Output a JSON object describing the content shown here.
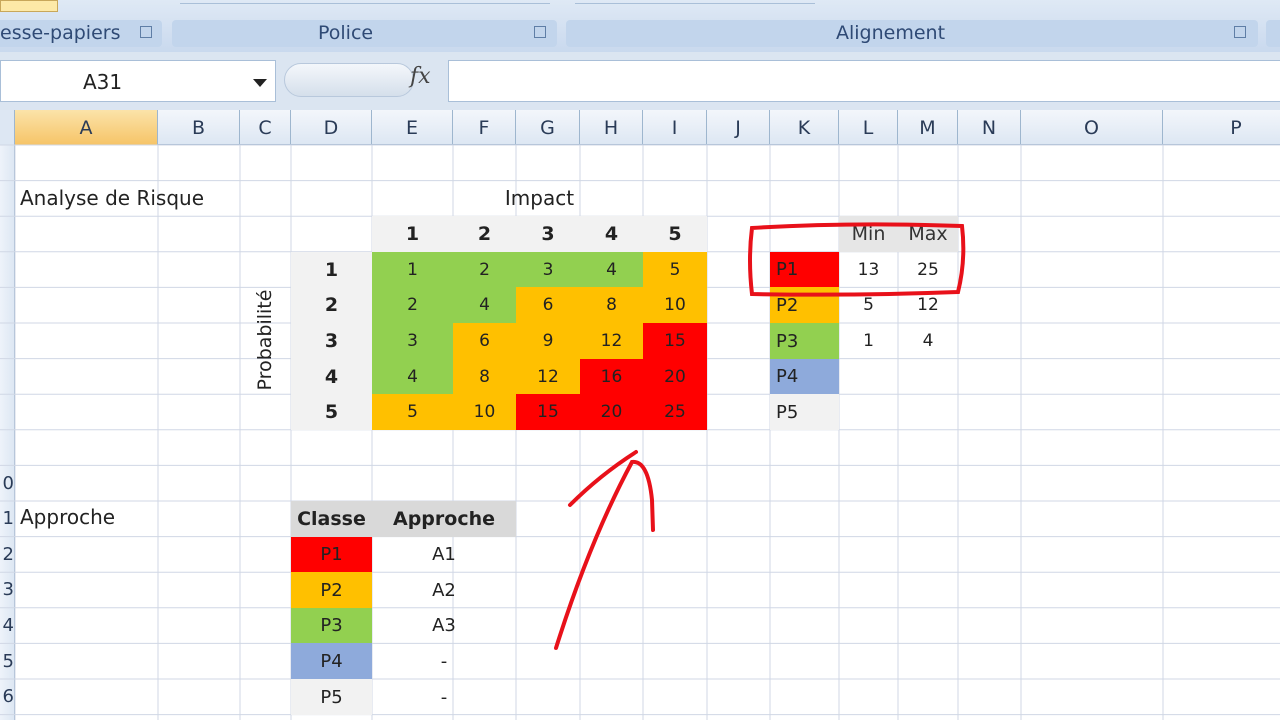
{
  "ribbon": {
    "groups": [
      "esse-papiers",
      "Police",
      "Alignement"
    ]
  },
  "formula_bar": {
    "name_box": "A31",
    "function_label": "fx"
  },
  "column_headers": [
    "A",
    "B",
    "C",
    "D",
    "E",
    "F",
    "G",
    "H",
    "I",
    "J",
    "K",
    "L",
    "M",
    "N",
    "O",
    "P"
  ],
  "row_headers": [
    "0",
    "1",
    "2",
    "3",
    "4",
    "5",
    "6"
  ],
  "risk_matrix": {
    "title": "Analyse de Risque",
    "impact_label": "Impact",
    "probability_label": "Probabilité",
    "impact_levels": [
      1,
      2,
      3,
      4,
      5
    ],
    "probability_levels": [
      1,
      2,
      3,
      4,
      5
    ],
    "scores": [
      [
        1,
        2,
        3,
        4,
        5
      ],
      [
        2,
        4,
        6,
        8,
        10
      ],
      [
        3,
        6,
        9,
        12,
        15
      ],
      [
        4,
        8,
        12,
        16,
        20
      ],
      [
        5,
        10,
        15,
        20,
        25
      ]
    ],
    "colors": [
      [
        "#92d050",
        "#92d050",
        "#92d050",
        "#92d050",
        "#ffc000"
      ],
      [
        "#92d050",
        "#92d050",
        "#ffc000",
        "#ffc000",
        "#ffc000"
      ],
      [
        "#92d050",
        "#ffc000",
        "#ffc000",
        "#ffc000",
        "#ff0000"
      ],
      [
        "#92d050",
        "#ffc000",
        "#ffc000",
        "#ff0000",
        "#ff0000"
      ],
      [
        "#ffc000",
        "#ffc000",
        "#ff0000",
        "#ff0000",
        "#ff0000"
      ]
    ]
  },
  "classes": {
    "headers": [
      "Min",
      "Max"
    ],
    "rows": [
      {
        "name": "P1",
        "color": "#ff0000",
        "min": 13,
        "max": 25
      },
      {
        "name": "P2",
        "color": "#ffc000",
        "min": 5,
        "max": 12
      },
      {
        "name": "P3",
        "color": "#92d050",
        "min": 1,
        "max": 4
      },
      {
        "name": "P4",
        "color": "#8eaadb"
      },
      {
        "name": "P5",
        "color": "#f2f2f2"
      }
    ]
  },
  "approach": {
    "title": "Approche",
    "headers": [
      "Classe",
      "Approche"
    ],
    "rows": [
      {
        "class": "P1",
        "approach": "A1"
      },
      {
        "class": "P2",
        "approach": "A2"
      },
      {
        "class": "P3",
        "approach": "A3"
      },
      {
        "class": "P4",
        "approach": "-"
      },
      {
        "class": "P5",
        "approach": "-"
      }
    ]
  }
}
